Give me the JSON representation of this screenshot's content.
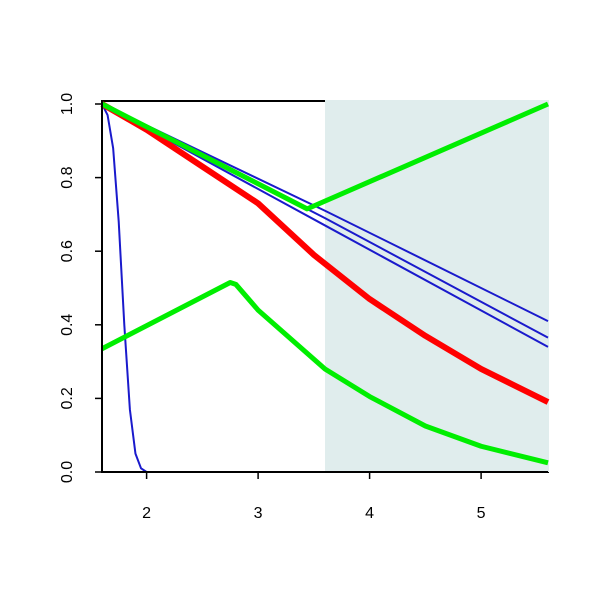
{
  "chart_data": {
    "type": "line",
    "xlim": [
      1.6,
      5.6
    ],
    "ylim": [
      0,
      1
    ],
    "xticks": [
      2,
      3,
      4,
      5
    ],
    "yticks": [
      {
        "value": 0,
        "label": "0.0"
      },
      {
        "value": 0.2,
        "label": "0.2"
      },
      {
        "value": 0.4,
        "label": "0.4"
      },
      {
        "value": 0.6,
        "label": "0.6"
      },
      {
        "value": 0.8,
        "label": "0.8"
      },
      {
        "value": 1,
        "label": "1.0"
      }
    ],
    "shade": {
      "xlim": [
        3.6,
        5.6
      ],
      "color": "#e0eded"
    },
    "series": [
      {
        "color": "#1a1acc",
        "x": [
          1.6,
          1.65,
          1.7,
          1.75,
          1.8,
          1.85,
          1.9,
          1.95,
          2.0,
          2.1,
          5.6
        ],
        "values": [
          1,
          0.97,
          0.88,
          0.68,
          0.4,
          0.17,
          0.05,
          0.01,
          0,
          0,
          0
        ]
      },
      {
        "color": "#1a1acc",
        "x": [
          1.6,
          3.6,
          5.6
        ],
        "values": [
          1,
          0.71,
          0.41
        ]
      },
      {
        "color": "#1a1acc",
        "x": [
          1.6,
          3.6,
          5.6
        ],
        "values": [
          1,
          0.69,
          0.365
        ]
      },
      {
        "color": "#1a1acc",
        "x": [
          1.6,
          3.6,
          5.6
        ],
        "values": [
          1,
          0.67,
          0.34
        ]
      },
      {
        "color": "#ff0000",
        "x": [
          1.6,
          2,
          2.5,
          3,
          3.5,
          4,
          4.5,
          5,
          5.6
        ],
        "values": [
          1,
          0.93,
          0.83,
          0.73,
          0.59,
          0.47,
          0.37,
          0.28,
          0.19
        ]
      },
      {
        "color": "#00ee00",
        "x": [
          1.6,
          3.44,
          5.6
        ],
        "values": [
          1,
          0.715,
          1
        ]
      },
      {
        "color": "#00ee00",
        "x": [
          1.6,
          2.75,
          2.8,
          3,
          3.6,
          4,
          4.5,
          5,
          5.6
        ],
        "values": [
          0.335,
          0.515,
          0.51,
          0.44,
          0.28,
          0.205,
          0.125,
          0.07,
          0.025
        ]
      }
    ]
  }
}
